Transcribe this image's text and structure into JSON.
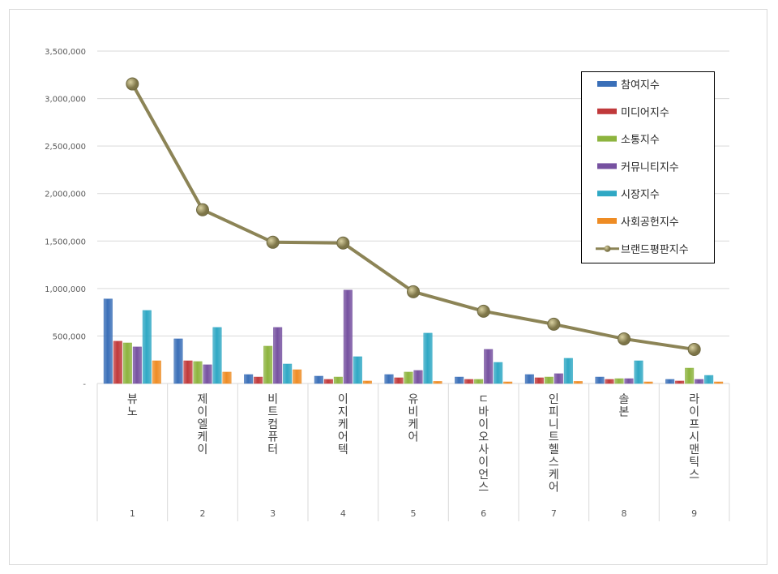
{
  "chart_data": {
    "type": "bar",
    "title": "",
    "xlabel": "",
    "ylabel": "",
    "ylim": [
      0,
      3500000
    ],
    "yticks": [
      "-",
      "500,000",
      "1,000,000",
      "1,500,000",
      "2,000,000",
      "2,500,000",
      "3,000,000",
      "3,500,000"
    ],
    "grid": true,
    "legend_position": "top-right",
    "categories": [
      "뷰노",
      "제이엘케이",
      "비트컴퓨터",
      "이지케어텍",
      "유비케어",
      "ㄷ바이오사이언스",
      "인피니트헬스케어",
      "솔본",
      "라이프시맨틱스"
    ],
    "category_numbers": [
      "1",
      "2",
      "3",
      "4",
      "5",
      "6",
      "7",
      "8",
      "9"
    ],
    "series": [
      {
        "name": "참여지수",
        "type": "bar",
        "color": "#3a6fb8",
        "values": [
          890000,
          470000,
          94000,
          77000,
          94000,
          68000,
          94000,
          68000,
          43000
        ]
      },
      {
        "name": "미디어지수",
        "type": "bar",
        "color": "#c0393b",
        "values": [
          445000,
          239000,
          68000,
          43000,
          60000,
          43000,
          60000,
          43000,
          26000
        ]
      },
      {
        "name": "소통지수",
        "type": "bar",
        "color": "#8db43e",
        "values": [
          427000,
          231000,
          393000,
          68000,
          120000,
          43000,
          68000,
          51000,
          162000
        ]
      },
      {
        "name": "커뮤니티지수",
        "type": "bar",
        "color": "#7651a0",
        "values": [
          385000,
          197000,
          590000,
          983000,
          137000,
          359000,
          103000,
          51000,
          43000
        ]
      },
      {
        "name": "시장지수",
        "type": "bar",
        "color": "#2fa8c4",
        "values": [
          769000,
          590000,
          205000,
          282000,
          530000,
          222000,
          265000,
          239000,
          85000
        ]
      },
      {
        "name": "사회공헌지수",
        "type": "bar",
        "color": "#ee8c24",
        "values": [
          239000,
          120000,
          145000,
          26000,
          22000,
          17000,
          22000,
          17000,
          17000
        ]
      },
      {
        "name": "브랜드평판지수",
        "type": "line",
        "color": "#8c8456",
        "values": [
          3154000,
          1829000,
          1487000,
          1479000,
          966000,
          761000,
          624000,
          470000,
          359000
        ]
      }
    ]
  }
}
